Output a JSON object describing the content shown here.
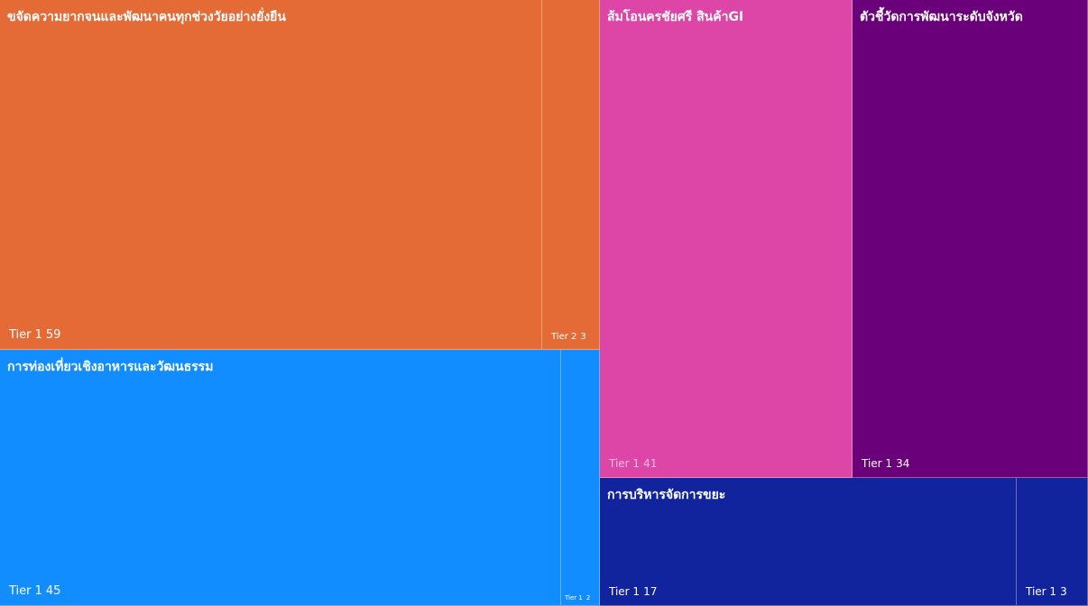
{
  "chart_data": {
    "type": "treemap",
    "groups": [
      {
        "name": "ขจัดความยากจนและพัฒนาคนทุกช่วงวัยอย่างยั่งยืน",
        "color": "#E46B36",
        "items": [
          {
            "label": "Tier 1",
            "value": 59
          },
          {
            "label": "Tier 2",
            "value": 3
          }
        ]
      },
      {
        "name": "การท่องเที่ยวเชิงอาหารและวัฒนธรรม",
        "color": "#118DFF",
        "items": [
          {
            "label": "Tier 1",
            "value": 45
          },
          {
            "label": "Tier 1",
            "value": 2
          }
        ]
      },
      {
        "name": "ส้มโอนครชัยศรี สินค้าGI",
        "color": "#DD45A7",
        "items": [
          {
            "label": "Tier 1",
            "value": 41
          }
        ]
      },
      {
        "name": "ตัวชี้วัดการพัฒนาระดับจังหวัด",
        "color": "#6B007B",
        "items": [
          {
            "label": "Tier 1",
            "value": 34
          }
        ]
      },
      {
        "name": "การบริหารจัดการขยะ",
        "color": "#12239E",
        "items": [
          {
            "label": "Tier 1",
            "value": 17
          },
          {
            "label": "Tier 1",
            "value": 3
          }
        ]
      }
    ]
  }
}
